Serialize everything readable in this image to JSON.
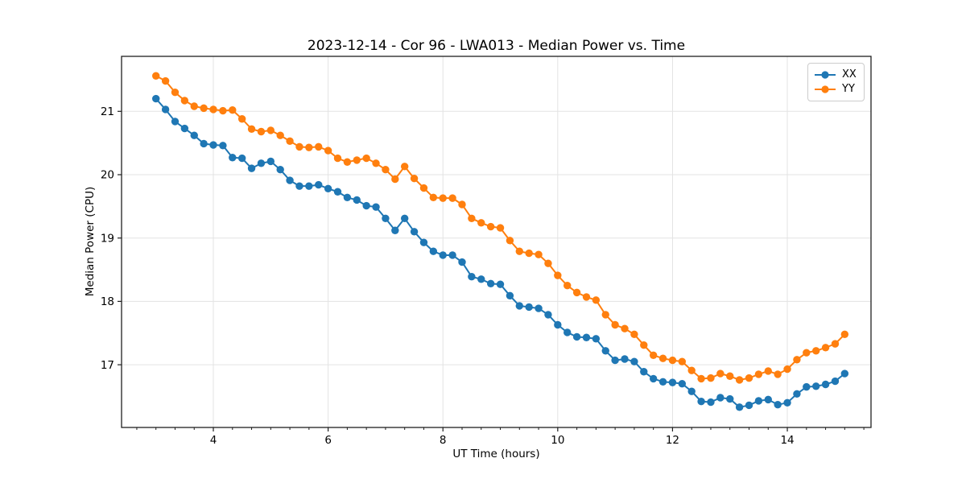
{
  "title": "2023-12-14 - Cor 96 - LWA013 - Median Power vs. Time",
  "axes": {
    "xlabel": "UT Time (hours)",
    "ylabel": "Median Power (CPU)"
  },
  "legend": {
    "position": "upper right",
    "items": [
      {
        "label": "XX",
        "color": "#1f77b4"
      },
      {
        "label": "YY",
        "color": "#ff7f0e"
      }
    ]
  },
  "colors": {
    "background": "#ffffff",
    "grid": "#e3e3e3",
    "spine": "#1f1f1f",
    "tick": "#1f1f1f",
    "text": "#000000",
    "series_xx": "#1f77b4",
    "series_yy": "#ff7f0e"
  },
  "chart_data": {
    "type": "line",
    "title": "2023-12-14 - Cor 96 - LWA013 - Median Power vs. Time",
    "xlabel": "UT Time (hours)",
    "ylabel": "Median Power (CPU)",
    "xlim": [
      2.401,
      15.458
    ],
    "ylim": [
      16.01,
      21.868
    ],
    "xticks": [
      4,
      6,
      8,
      10,
      12,
      14
    ],
    "yticks": [
      17,
      18,
      19,
      20,
      21
    ],
    "minor_xtick_step": 0.3333,
    "grid": true,
    "marker": "circle",
    "legend_position": "upper right",
    "x": [
      3.0,
      3.1667,
      3.3333,
      3.5,
      3.6667,
      3.8333,
      4.0,
      4.1667,
      4.3333,
      4.5,
      4.6667,
      4.8333,
      5.0,
      5.1667,
      5.3333,
      5.5,
      5.6667,
      5.8333,
      6.0,
      6.1667,
      6.3333,
      6.5,
      6.6667,
      6.8333,
      7.0,
      7.1667,
      7.3333,
      7.5,
      7.6667,
      7.8333,
      8.0,
      8.1667,
      8.3333,
      8.5,
      8.6667,
      8.8333,
      9.0,
      9.1667,
      9.3333,
      9.5,
      9.6667,
      9.8333,
      10.0,
      10.1667,
      10.3333,
      10.5,
      10.6667,
      10.8333,
      11.0,
      11.1667,
      11.3333,
      11.5,
      11.6667,
      11.8333,
      12.0,
      12.1667,
      12.3333,
      12.5,
      12.6667,
      12.8333,
      13.0,
      13.1667,
      13.3333,
      13.5,
      13.6667,
      13.8333,
      14.0,
      14.1667,
      14.3333,
      14.5,
      14.6667,
      14.8333,
      15.0
    ],
    "series": [
      {
        "name": "XX",
        "color": "#1f77b4",
        "values": [
          21.2,
          21.03,
          20.84,
          20.73,
          20.62,
          20.49,
          20.47,
          20.46,
          20.27,
          20.26,
          20.1,
          20.18,
          20.21,
          20.08,
          19.91,
          19.82,
          19.82,
          19.84,
          19.78,
          19.73,
          19.64,
          19.6,
          19.51,
          19.49,
          19.31,
          19.12,
          19.31,
          19.1,
          18.93,
          18.79,
          18.73,
          18.73,
          18.62,
          18.39,
          18.35,
          18.28,
          18.27,
          18.09,
          17.93,
          17.91,
          17.89,
          17.79,
          17.63,
          17.51,
          17.44,
          17.43,
          17.41,
          17.22,
          17.07,
          17.09,
          17.05,
          16.89,
          16.78,
          16.73,
          16.72,
          16.7,
          16.58,
          16.42,
          16.41,
          16.48,
          16.46,
          16.33,
          16.36,
          16.43,
          16.45,
          16.37,
          16.4,
          16.54,
          16.65,
          16.66,
          16.69,
          16.74,
          16.86
        ]
      },
      {
        "name": "YY",
        "color": "#ff7f0e",
        "values": [
          21.56,
          21.48,
          21.3,
          21.17,
          21.08,
          21.05,
          21.03,
          21.01,
          21.02,
          20.88,
          20.72,
          20.68,
          20.7,
          20.62,
          20.53,
          20.44,
          20.43,
          20.44,
          20.38,
          20.26,
          20.2,
          20.23,
          20.26,
          20.18,
          20.08,
          19.93,
          20.13,
          19.94,
          19.79,
          19.64,
          19.63,
          19.63,
          19.53,
          19.31,
          19.24,
          19.18,
          19.16,
          18.96,
          18.79,
          18.76,
          18.74,
          18.6,
          18.41,
          18.25,
          18.14,
          18.07,
          18.02,
          17.79,
          17.63,
          17.57,
          17.48,
          17.31,
          17.15,
          17.1,
          17.07,
          17.05,
          16.91,
          16.78,
          16.79,
          16.86,
          16.82,
          16.76,
          16.79,
          16.85,
          16.9,
          16.85,
          16.93,
          17.08,
          17.19,
          17.22,
          17.27,
          17.33,
          17.48
        ]
      }
    ]
  }
}
